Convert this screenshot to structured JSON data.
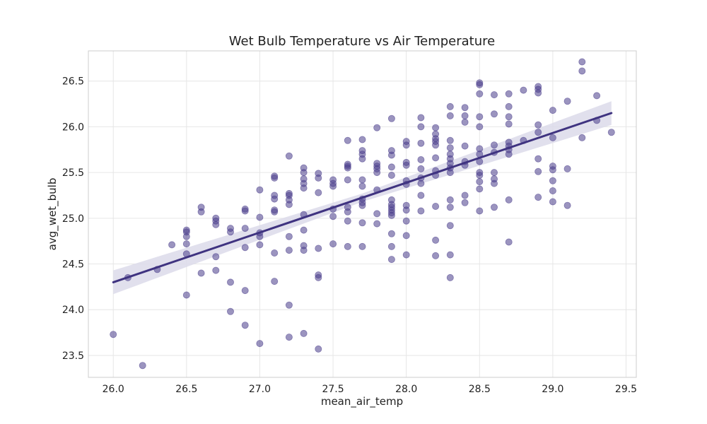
{
  "chart_data": {
    "type": "scatter",
    "title": "Wet Bulb Temperature vs Air Temperature",
    "xlabel": "mean_air_temp",
    "ylabel": "avg_wet_bulb",
    "xlim": [
      25.83,
      29.57
    ],
    "ylim": [
      23.26,
      26.83
    ],
    "xticks": [
      26.0,
      26.5,
      27.0,
      27.5,
      28.0,
      28.5,
      29.0,
      29.5
    ],
    "yticks": [
      23.5,
      24.0,
      24.5,
      25.0,
      25.5,
      26.0,
      26.5
    ],
    "grid": true,
    "colors": {
      "points": "#483d8b",
      "line": "#3f3380",
      "band": "#dcdaea"
    },
    "regression": {
      "x": [
        26.0,
        29.4
      ],
      "y": [
        24.3,
        26.15
      ],
      "ci_halfwidth": [
        0.13,
        0.1
      ]
    },
    "points": [
      [
        26.0,
        23.73
      ],
      [
        26.1,
        24.35
      ],
      [
        26.2,
        23.39
      ],
      [
        26.3,
        24.44
      ],
      [
        26.4,
        24.71
      ],
      [
        26.5,
        24.16
      ],
      [
        26.5,
        24.61
      ],
      [
        26.5,
        24.72
      ],
      [
        26.5,
        24.8
      ],
      [
        26.5,
        24.85
      ],
      [
        26.5,
        24.87
      ],
      [
        26.6,
        24.4
      ],
      [
        26.6,
        25.07
      ],
      [
        26.6,
        25.12
      ],
      [
        26.7,
        24.43
      ],
      [
        26.7,
        24.58
      ],
      [
        26.7,
        24.93
      ],
      [
        26.7,
        24.97
      ],
      [
        26.7,
        25.0
      ],
      [
        26.8,
        23.98
      ],
      [
        26.8,
        24.3
      ],
      [
        26.8,
        24.85
      ],
      [
        26.8,
        24.89
      ],
      [
        26.9,
        23.83
      ],
      [
        26.9,
        24.21
      ],
      [
        26.9,
        24.68
      ],
      [
        26.9,
        24.89
      ],
      [
        26.9,
        25.08
      ],
      [
        26.9,
        25.1
      ],
      [
        27.0,
        23.63
      ],
      [
        27.0,
        24.71
      ],
      [
        27.0,
        24.8
      ],
      [
        27.0,
        24.84
      ],
      [
        27.0,
        25.01
      ],
      [
        27.0,
        25.31
      ],
      [
        27.1,
        24.31
      ],
      [
        27.1,
        24.62
      ],
      [
        27.1,
        25.07
      ],
      [
        27.1,
        25.09
      ],
      [
        27.1,
        25.21
      ],
      [
        27.1,
        25.25
      ],
      [
        27.1,
        25.44
      ],
      [
        27.1,
        25.46
      ],
      [
        27.2,
        23.7
      ],
      [
        27.2,
        24.05
      ],
      [
        27.2,
        24.65
      ],
      [
        27.2,
        24.8
      ],
      [
        27.2,
        25.15
      ],
      [
        27.2,
        25.2
      ],
      [
        27.2,
        25.25
      ],
      [
        27.2,
        25.27
      ],
      [
        27.2,
        25.68
      ],
      [
        27.3,
        23.74
      ],
      [
        27.3,
        24.65
      ],
      [
        27.3,
        24.7
      ],
      [
        27.3,
        24.87
      ],
      [
        27.3,
        25.04
      ],
      [
        27.3,
        25.33
      ],
      [
        27.3,
        25.38
      ],
      [
        27.3,
        25.43
      ],
      [
        27.3,
        25.5
      ],
      [
        27.3,
        25.55
      ],
      [
        27.4,
        23.57
      ],
      [
        27.4,
        24.35
      ],
      [
        27.4,
        24.38
      ],
      [
        27.4,
        24.67
      ],
      [
        27.4,
        25.28
      ],
      [
        27.4,
        25.44
      ],
      [
        27.4,
        25.49
      ],
      [
        27.5,
        24.72
      ],
      [
        27.5,
        25.02
      ],
      [
        27.5,
        25.1
      ],
      [
        27.5,
        25.35
      ],
      [
        27.5,
        25.38
      ],
      [
        27.5,
        25.42
      ],
      [
        27.6,
        24.69
      ],
      [
        27.6,
        24.97
      ],
      [
        27.6,
        25.07
      ],
      [
        27.6,
        25.12
      ],
      [
        27.6,
        25.42
      ],
      [
        27.6,
        25.55
      ],
      [
        27.6,
        25.57
      ],
      [
        27.6,
        25.59
      ],
      [
        27.6,
        25.85
      ],
      [
        27.7,
        24.69
      ],
      [
        27.7,
        24.95
      ],
      [
        27.7,
        25.14
      ],
      [
        27.7,
        25.17
      ],
      [
        27.7,
        25.21
      ],
      [
        27.7,
        25.35
      ],
      [
        27.7,
        25.42
      ],
      [
        27.7,
        25.65
      ],
      [
        27.7,
        25.7
      ],
      [
        27.7,
        25.74
      ],
      [
        27.7,
        25.86
      ],
      [
        27.8,
        24.94
      ],
      [
        27.8,
        25.05
      ],
      [
        27.8,
        25.31
      ],
      [
        27.8,
        25.5
      ],
      [
        27.8,
        25.54
      ],
      [
        27.8,
        25.57
      ],
      [
        27.8,
        25.6
      ],
      [
        27.8,
        25.99
      ],
      [
        27.9,
        24.55
      ],
      [
        27.9,
        24.69
      ],
      [
        27.9,
        24.83
      ],
      [
        27.9,
        25.03
      ],
      [
        27.9,
        25.06
      ],
      [
        27.9,
        25.09
      ],
      [
        27.9,
        25.12
      ],
      [
        27.9,
        25.15
      ],
      [
        27.9,
        25.2
      ],
      [
        27.9,
        25.47
      ],
      [
        27.9,
        25.56
      ],
      [
        27.9,
        25.69
      ],
      [
        27.9,
        25.74
      ],
      [
        27.9,
        26.09
      ],
      [
        28.0,
        24.6
      ],
      [
        28.0,
        24.81
      ],
      [
        28.0,
        24.97
      ],
      [
        28.0,
        25.09
      ],
      [
        28.0,
        25.14
      ],
      [
        28.0,
        25.37
      ],
      [
        28.0,
        25.41
      ],
      [
        28.0,
        25.58
      ],
      [
        28.0,
        25.61
      ],
      [
        28.0,
        25.8
      ],
      [
        28.0,
        25.84
      ],
      [
        28.1,
        25.08
      ],
      [
        28.1,
        25.25
      ],
      [
        28.1,
        25.38
      ],
      [
        28.1,
        25.44
      ],
      [
        28.1,
        25.54
      ],
      [
        28.1,
        25.64
      ],
      [
        28.1,
        25.82
      ],
      [
        28.1,
        26.0
      ],
      [
        28.1,
        26.1
      ],
      [
        28.2,
        24.59
      ],
      [
        28.2,
        24.76
      ],
      [
        28.2,
        25.13
      ],
      [
        28.2,
        25.47
      ],
      [
        28.2,
        25.52
      ],
      [
        28.2,
        25.66
      ],
      [
        28.2,
        25.8
      ],
      [
        28.2,
        25.84
      ],
      [
        28.2,
        25.87
      ],
      [
        28.2,
        25.92
      ],
      [
        28.2,
        25.99
      ],
      [
        28.3,
        24.35
      ],
      [
        28.3,
        24.6
      ],
      [
        28.3,
        24.92
      ],
      [
        28.3,
        25.12
      ],
      [
        28.3,
        25.2
      ],
      [
        28.3,
        25.5
      ],
      [
        28.3,
        25.55
      ],
      [
        28.3,
        25.6
      ],
      [
        28.3,
        25.65
      ],
      [
        28.3,
        25.7
      ],
      [
        28.3,
        25.77
      ],
      [
        28.3,
        25.85
      ],
      [
        28.3,
        26.12
      ],
      [
        28.3,
        26.22
      ],
      [
        28.4,
        25.17
      ],
      [
        28.4,
        25.25
      ],
      [
        28.4,
        25.58
      ],
      [
        28.4,
        25.62
      ],
      [
        28.4,
        25.79
      ],
      [
        28.4,
        26.05
      ],
      [
        28.4,
        26.12
      ],
      [
        28.4,
        26.21
      ],
      [
        28.5,
        25.08
      ],
      [
        28.5,
        25.32
      ],
      [
        28.5,
        25.4
      ],
      [
        28.5,
        25.47
      ],
      [
        28.5,
        25.5
      ],
      [
        28.5,
        25.62
      ],
      [
        28.5,
        25.7
      ],
      [
        28.5,
        25.76
      ],
      [
        28.5,
        26.0
      ],
      [
        28.5,
        26.11
      ],
      [
        28.5,
        26.36
      ],
      [
        28.5,
        26.46
      ],
      [
        28.5,
        26.48
      ],
      [
        28.6,
        25.12
      ],
      [
        28.6,
        25.38
      ],
      [
        28.6,
        25.43
      ],
      [
        28.6,
        25.5
      ],
      [
        28.6,
        25.72
      ],
      [
        28.6,
        25.8
      ],
      [
        28.6,
        26.14
      ],
      [
        28.6,
        26.35
      ],
      [
        28.7,
        24.74
      ],
      [
        28.7,
        25.2
      ],
      [
        28.7,
        25.7
      ],
      [
        28.7,
        25.75
      ],
      [
        28.7,
        25.79
      ],
      [
        28.7,
        25.83
      ],
      [
        28.7,
        26.03
      ],
      [
        28.7,
        26.11
      ],
      [
        28.7,
        26.22
      ],
      [
        28.7,
        26.36
      ],
      [
        28.8,
        25.85
      ],
      [
        28.8,
        26.4
      ],
      [
        28.9,
        25.23
      ],
      [
        28.9,
        25.51
      ],
      [
        28.9,
        25.65
      ],
      [
        28.9,
        25.94
      ],
      [
        28.9,
        26.02
      ],
      [
        28.9,
        26.37
      ],
      [
        28.9,
        26.41
      ],
      [
        28.9,
        26.44
      ],
      [
        29.0,
        25.18
      ],
      [
        29.0,
        25.3
      ],
      [
        29.0,
        25.41
      ],
      [
        29.0,
        25.53
      ],
      [
        29.0,
        25.57
      ],
      [
        29.0,
        25.88
      ],
      [
        29.0,
        26.18
      ],
      [
        29.1,
        25.14
      ],
      [
        29.1,
        25.54
      ],
      [
        29.1,
        26.28
      ],
      [
        29.2,
        25.88
      ],
      [
        29.2,
        26.61
      ],
      [
        29.2,
        26.71
      ],
      [
        29.3,
        26.07
      ],
      [
        29.3,
        26.34
      ],
      [
        29.4,
        25.94
      ]
    ]
  }
}
